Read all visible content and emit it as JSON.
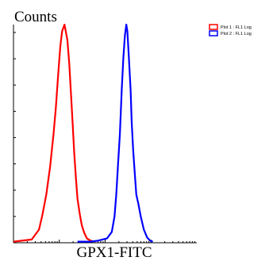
{
  "chart_data": {
    "type": "line",
    "title": "",
    "ylabel": "Counts",
    "xlabel": "GPX1-FITC",
    "x_scale": "log",
    "xlim": [
      1,
      10000
    ],
    "ylim": [
      0,
      100
    ],
    "grid": false,
    "legend_position": "top-right",
    "series": [
      {
        "name": "Plot 1 : FL1 Log",
        "color": "#ff0000",
        "x": [
          1,
          2.5,
          3.6,
          4.2,
          5.2,
          6.3,
          7.5,
          8.4,
          9.5,
          10.5,
          11.5,
          13,
          15,
          16.5,
          18,
          19.5,
          21,
          23,
          25,
          28,
          31,
          35,
          40,
          48,
          56
        ],
        "y": [
          0.5,
          1.5,
          6,
          12,
          22,
          35,
          50,
          62,
          78,
          90,
          97,
          100,
          93,
          82,
          68,
          55,
          42,
          30,
          20,
          13,
          8,
          4.5,
          2,
          1,
          0.5
        ]
      },
      {
        "name": "Plot 2 : FL1 Log",
        "color": "#0000ff",
        "x": [
          25,
          48,
          70,
          110,
          140,
          160,
          175,
          190,
          210,
          230,
          250,
          270,
          290,
          305,
          330,
          360,
          380,
          410,
          450,
          480,
          530,
          600,
          700,
          820,
          950,
          1100
        ],
        "y": [
          0.5,
          0.5,
          1,
          2,
          5,
          12,
          22,
          35,
          50,
          70,
          85,
          95,
          100,
          97,
          85,
          70,
          55,
          42,
          30,
          22,
          18,
          12,
          6,
          2.5,
          1,
          0.5
        ]
      }
    ]
  }
}
